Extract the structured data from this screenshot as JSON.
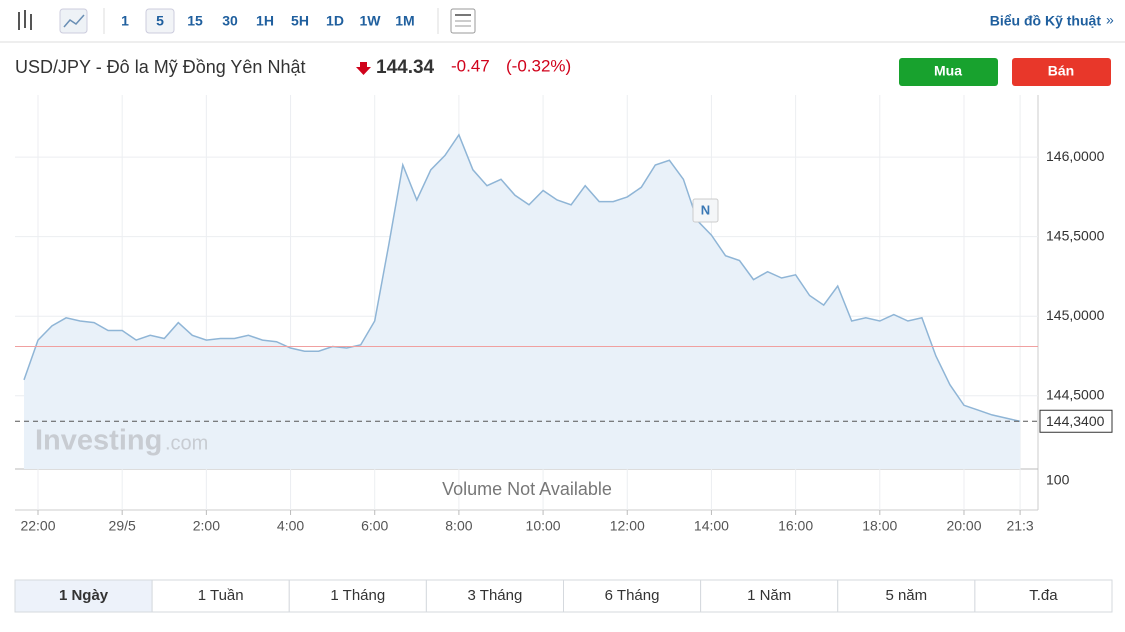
{
  "toolbar": {
    "intervals": [
      "1",
      "5",
      "15",
      "30",
      "1H",
      "5H",
      "1D",
      "1W",
      "1M"
    ],
    "link": "Biểu đồ Kỹ thuật"
  },
  "header": {
    "pair": "USD/JPY - Đô la Mỹ Đồng Yên Nhật",
    "price": "144.34",
    "change": "-0.47",
    "change_pct": "(-0.32%)"
  },
  "buttons": {
    "buy": "Mua",
    "sell": "Bán"
  },
  "chart_data": {
    "type": "line",
    "color": "#8fb5d6",
    "categories": [
      null,
      "22:00",
      null,
      null,
      null,
      null,
      null,
      "29/5",
      null,
      null,
      null,
      null,
      null,
      "2:00",
      null,
      null,
      null,
      null,
      null,
      "4:00",
      null,
      null,
      null,
      null,
      null,
      "6:00",
      null,
      null,
      null,
      null,
      null,
      "8:00",
      null,
      null,
      null,
      null,
      null,
      "10:00",
      null,
      null,
      null,
      null,
      null,
      "12:00",
      null,
      null,
      null,
      null,
      null,
      "14:00",
      null,
      null,
      null,
      null,
      null,
      "16:00",
      null,
      null,
      null,
      null,
      null,
      "18:00",
      null,
      null,
      null,
      null,
      null,
      "20:00",
      null,
      null,
      null,
      "21:3"
    ],
    "values": [
      144.6,
      144.85,
      144.94,
      144.99,
      144.97,
      144.96,
      144.91,
      144.91,
      144.85,
      144.88,
      144.86,
      144.96,
      144.88,
      144.85,
      144.86,
      144.86,
      144.88,
      144.85,
      144.84,
      144.8,
      144.78,
      144.78,
      144.81,
      144.8,
      144.82,
      144.97,
      145.45,
      145.95,
      145.73,
      145.92,
      146.01,
      146.14,
      145.92,
      145.82,
      145.86,
      145.76,
      145.7,
      145.79,
      145.73,
      145.7,
      145.82,
      145.72,
      145.72,
      145.75,
      145.81,
      145.95,
      145.98,
      145.86,
      145.6,
      145.51,
      145.38,
      145.35,
      145.23,
      145.28,
      145.24,
      145.26,
      145.13,
      145.07,
      145.19,
      144.97,
      144.99,
      144.97,
      145.01,
      144.97,
      144.99,
      144.75,
      144.57,
      144.44,
      144.41,
      144.38,
      144.36,
      144.34
    ],
    "ylim": [
      144.04,
      146.39
    ],
    "yticks": [
      {
        "value": 144.5,
        "label": "144,5000"
      },
      {
        "value": 145,
        "label": "145,0000"
      },
      {
        "value": 145.5,
        "label": "145,5000"
      },
      {
        "value": 146,
        "label": "146,0000"
      }
    ],
    "grid": true,
    "previous_close": 144.81,
    "last": {
      "value": 144.34,
      "label": "144,3400"
    },
    "annotations": [
      "N"
    ],
    "watermark": [
      "Investing",
      ".com"
    ],
    "volume_panel": {
      "message": "Volume Not Available",
      "yticks": [
        100
      ]
    }
  },
  "periods": [
    "1 Ngày",
    "1 Tuần",
    "1 Tháng",
    "3 Tháng",
    "6 Tháng",
    "1 Năm",
    "5 năm",
    "T.đa"
  ]
}
